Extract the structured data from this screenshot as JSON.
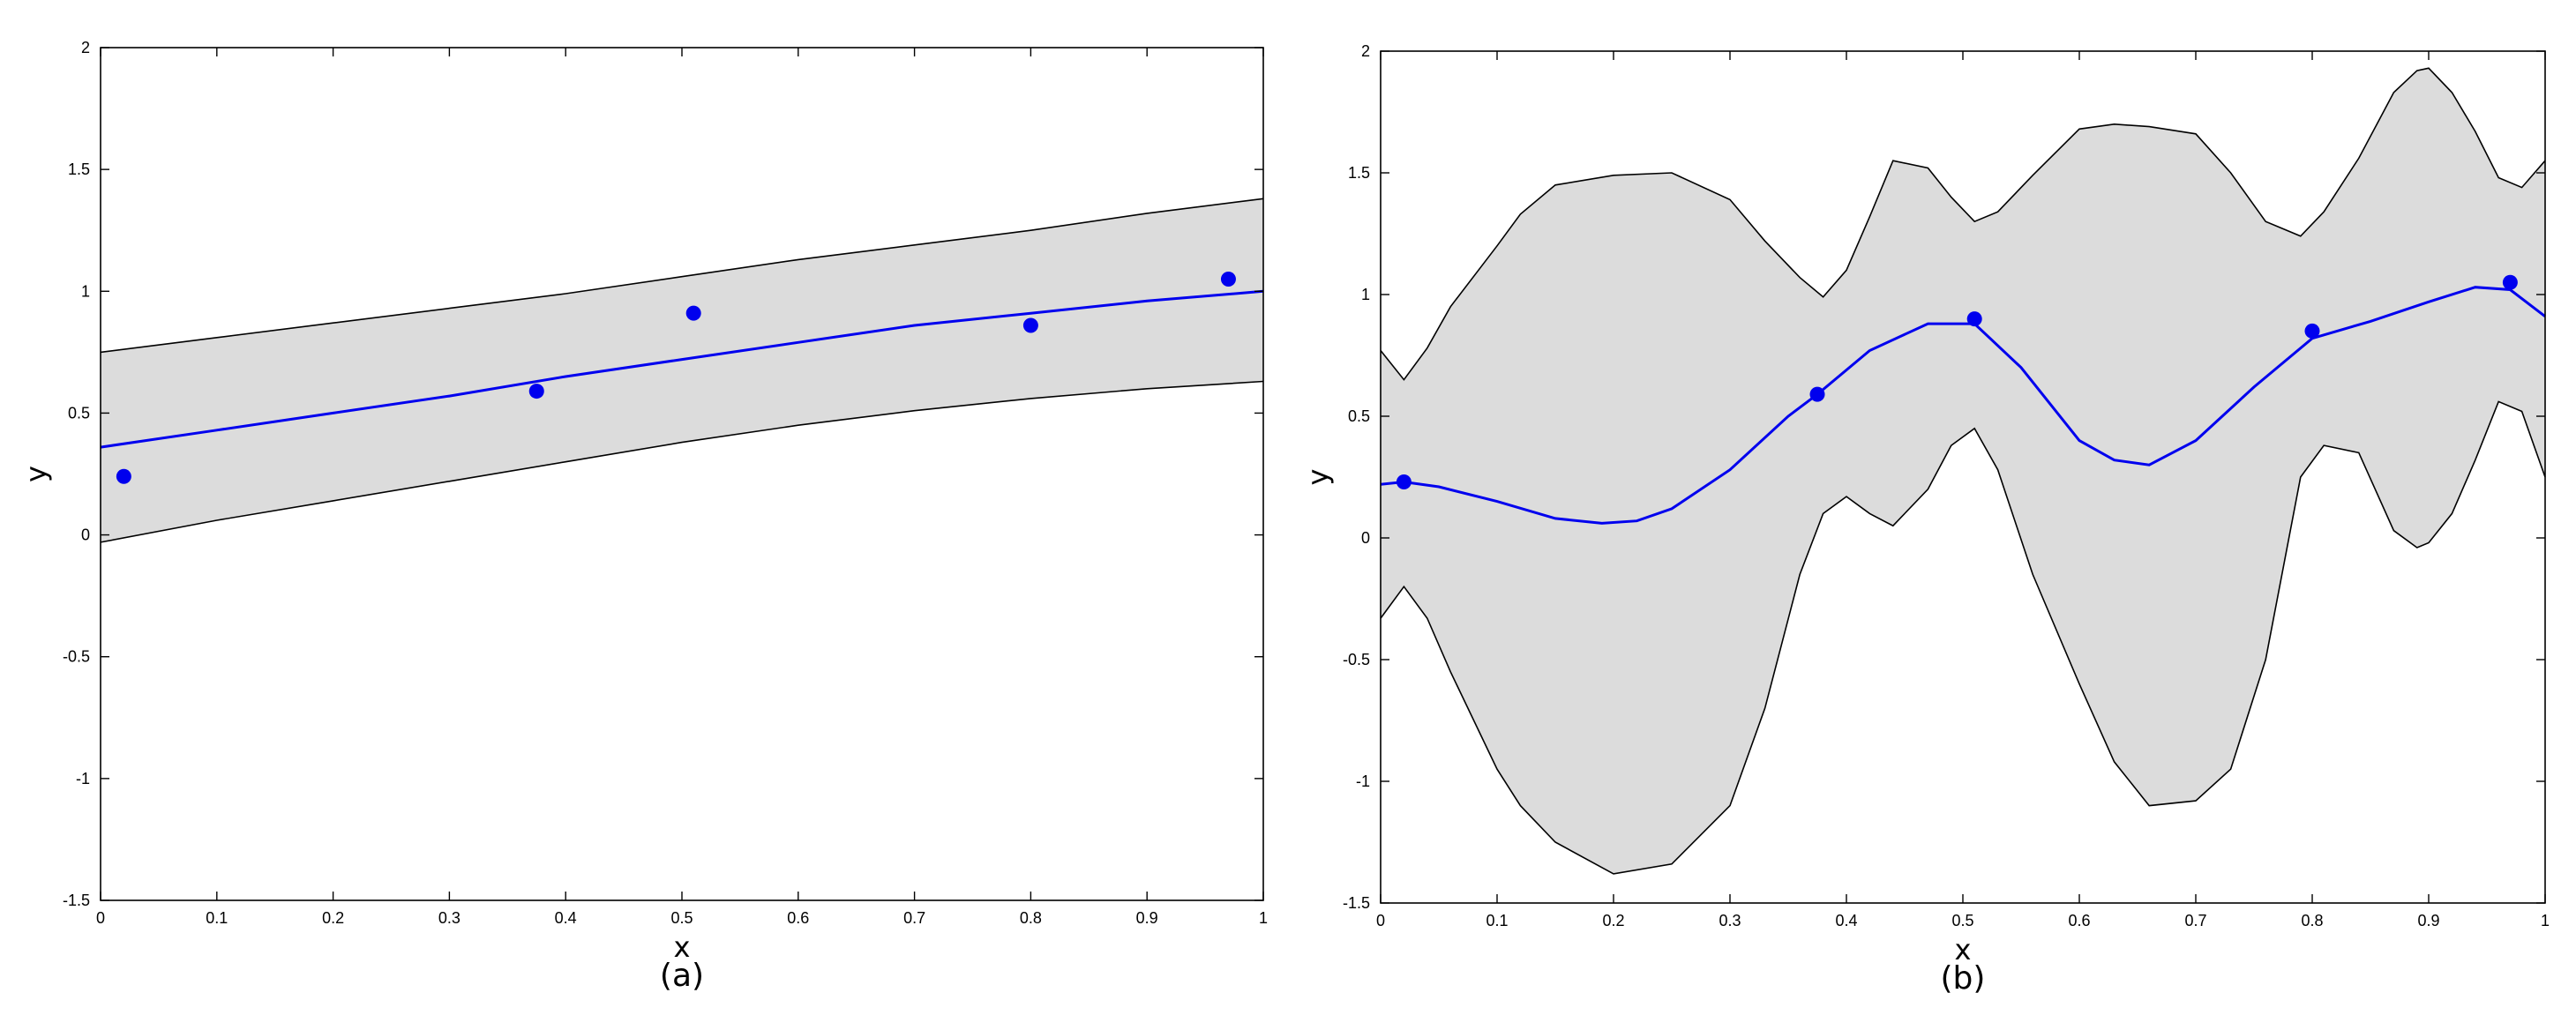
{
  "chart_data": [
    {
      "type": "line",
      "caption": "(a)",
      "xlabel": "x",
      "ylabel": "y",
      "xlim": [
        0,
        1
      ],
      "ylim": [
        -1.5,
        2
      ],
      "xticks": [
        0,
        0.1,
        0.2,
        0.3,
        0.4,
        0.5,
        0.6,
        0.7,
        0.8,
        0.9,
        1
      ],
      "xtick_labels": [
        "0",
        "0.1",
        "0.2",
        "0.3",
        "0.4",
        "0.5",
        "0.6",
        "0.7",
        "0.8",
        "0.9",
        "1"
      ],
      "yticks": [
        -1.5,
        -1,
        -0.5,
        0,
        0.5,
        1,
        1.5,
        2
      ],
      "ytick_labels": [
        "-1.5",
        "-1",
        "-0.5",
        "0",
        "0.5",
        "1",
        "1.5",
        "2"
      ],
      "grid": false,
      "colors": {
        "mean": "#0000ee",
        "band_fill": "#dcdcdc",
        "band_edge": "#000000",
        "points": "#0000ee"
      },
      "points": {
        "x": [
          0.02,
          0.375,
          0.51,
          0.8,
          0.97
        ],
        "y": [
          0.24,
          0.59,
          0.91,
          0.86,
          1.05
        ]
      },
      "mean": {
        "x": [
          0,
          0.1,
          0.2,
          0.3,
          0.4,
          0.5,
          0.6,
          0.7,
          0.8,
          0.9,
          1
        ],
        "y": [
          0.36,
          0.43,
          0.5,
          0.57,
          0.65,
          0.72,
          0.79,
          0.86,
          0.91,
          0.96,
          1.0
        ]
      },
      "band": {
        "x": [
          0,
          0.1,
          0.2,
          0.3,
          0.4,
          0.5,
          0.6,
          0.7,
          0.8,
          0.9,
          1
        ],
        "upper": [
          0.75,
          0.81,
          0.87,
          0.93,
          0.99,
          1.06,
          1.13,
          1.19,
          1.25,
          1.32,
          1.38
        ],
        "lower": [
          -0.03,
          0.06,
          0.14,
          0.22,
          0.3,
          0.38,
          0.45,
          0.51,
          0.56,
          0.6,
          0.63
        ]
      }
    },
    {
      "type": "line",
      "caption": "(b)",
      "xlabel": "x",
      "ylabel": "y",
      "xlim": [
        0,
        1
      ],
      "ylim": [
        -1.5,
        2
      ],
      "xticks": [
        0,
        0.1,
        0.2,
        0.3,
        0.4,
        0.5,
        0.6,
        0.7,
        0.8,
        0.9,
        1
      ],
      "xtick_labels": [
        "0",
        "0.1",
        "0.2",
        "0.3",
        "0.4",
        "0.5",
        "0.6",
        "0.7",
        "0.8",
        "0.9",
        "1"
      ],
      "yticks": [
        -1.5,
        -1,
        -0.5,
        0,
        0.5,
        1,
        1.5,
        2
      ],
      "ytick_labels": [
        "-1.5",
        "-1",
        "-0.5",
        "0",
        "0.5",
        "1",
        "1.5",
        "2"
      ],
      "grid": false,
      "colors": {
        "mean": "#0000ee",
        "band_fill": "#dcdcdc",
        "band_edge": "#000000",
        "points": "#0000ee"
      },
      "points": {
        "x": [
          0.02,
          0.375,
          0.51,
          0.8,
          0.97
        ],
        "y": [
          0.23,
          0.59,
          0.9,
          0.85,
          1.05
        ]
      },
      "mean": {
        "x": [
          0,
          0.02,
          0.05,
          0.1,
          0.15,
          0.19,
          0.22,
          0.25,
          0.3,
          0.35,
          0.375,
          0.42,
          0.47,
          0.51,
          0.55,
          0.6,
          0.63,
          0.66,
          0.7,
          0.75,
          0.8,
          0.85,
          0.9,
          0.94,
          0.97,
          1
        ],
        "y": [
          0.22,
          0.23,
          0.21,
          0.15,
          0.08,
          0.06,
          0.07,
          0.12,
          0.28,
          0.5,
          0.59,
          0.77,
          0.88,
          0.88,
          0.7,
          0.4,
          0.32,
          0.3,
          0.4,
          0.62,
          0.82,
          0.89,
          0.97,
          1.03,
          1.02,
          0.91
        ]
      },
      "band": {
        "x": [
          0,
          0.02,
          0.04,
          0.06,
          0.1,
          0.12,
          0.15,
          0.2,
          0.25,
          0.3,
          0.33,
          0.36,
          0.38,
          0.4,
          0.42,
          0.44,
          0.47,
          0.49,
          0.51,
          0.53,
          0.56,
          0.6,
          0.63,
          0.66,
          0.7,
          0.73,
          0.76,
          0.79,
          0.81,
          0.84,
          0.87,
          0.89,
          0.9,
          0.92,
          0.94,
          0.96,
          0.98,
          1
        ],
        "upper": [
          0.77,
          0.65,
          0.78,
          0.95,
          1.2,
          1.33,
          1.45,
          1.49,
          1.5,
          1.39,
          1.22,
          1.07,
          0.99,
          1.1,
          1.32,
          1.55,
          1.52,
          1.4,
          1.3,
          1.34,
          1.49,
          1.68,
          1.7,
          1.69,
          1.66,
          1.5,
          1.3,
          1.24,
          1.34,
          1.56,
          1.83,
          1.92,
          1.93,
          1.83,
          1.67,
          1.48,
          1.44,
          1.55
        ],
        "lower": [
          -0.33,
          -0.2,
          -0.33,
          -0.55,
          -0.95,
          -1.1,
          -1.25,
          -1.38,
          -1.34,
          -1.1,
          -0.7,
          -0.15,
          0.1,
          0.17,
          0.1,
          0.05,
          0.2,
          0.38,
          0.45,
          0.28,
          -0.15,
          -0.6,
          -0.92,
          -1.1,
          -1.08,
          -0.95,
          -0.5,
          0.25,
          0.38,
          0.35,
          0.03,
          -0.04,
          -0.02,
          0.1,
          0.32,
          0.56,
          0.52,
          0.25
        ]
      }
    }
  ]
}
